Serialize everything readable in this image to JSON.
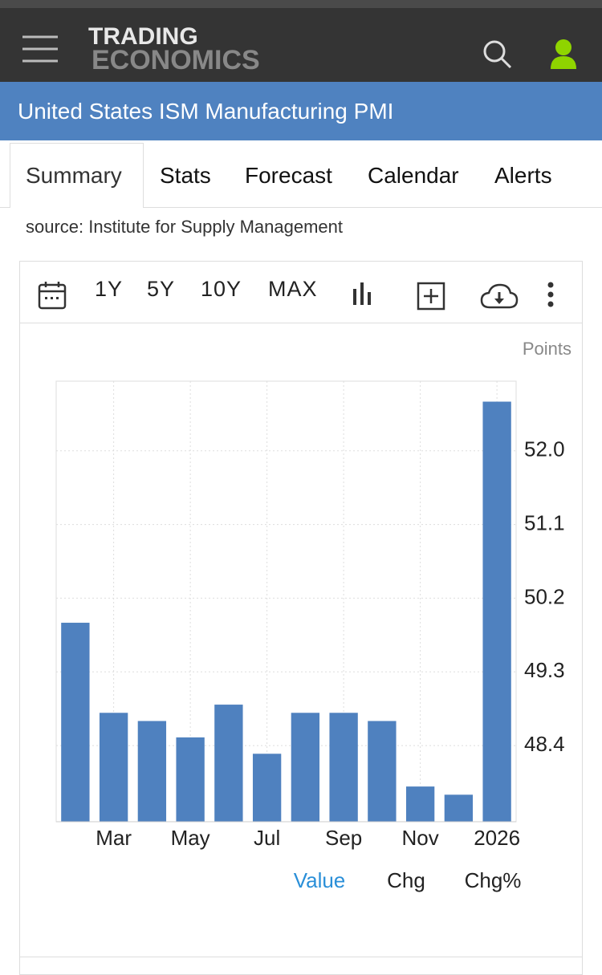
{
  "header": {
    "logo_line1": "TRADING",
    "logo_line2": "ECONOMICS"
  },
  "page_title": "United States ISM Manufacturing PMI",
  "tabs": [
    "Summary",
    "Stats",
    "Forecast",
    "Calendar",
    "Alerts"
  ],
  "source": "source: Institute for Supply Management",
  "toolbar": [
    "1Y",
    "5Y",
    "10Y",
    "MAX"
  ],
  "chart_data": {
    "type": "bar",
    "y_axis_label": "Points",
    "categories": [
      null,
      "Mar",
      null,
      "May",
      null,
      "Jul",
      null,
      "Sep",
      null,
      "Nov",
      null,
      "2026"
    ],
    "values": [
      49.9,
      48.8,
      48.7,
      48.5,
      48.9,
      48.3,
      48.8,
      48.8,
      48.7,
      47.9,
      47.8,
      52.6
    ],
    "color": "#4f81bf",
    "ylim": [
      47.47,
      52.85
    ],
    "yticks": [
      48.4,
      49.3,
      50.2,
      51.1,
      {
        "value": 52,
        "label": "52.0"
      }
    ],
    "grid": true
  },
  "chart_tabs": [
    "Value",
    "Chg",
    "Chg%"
  ]
}
